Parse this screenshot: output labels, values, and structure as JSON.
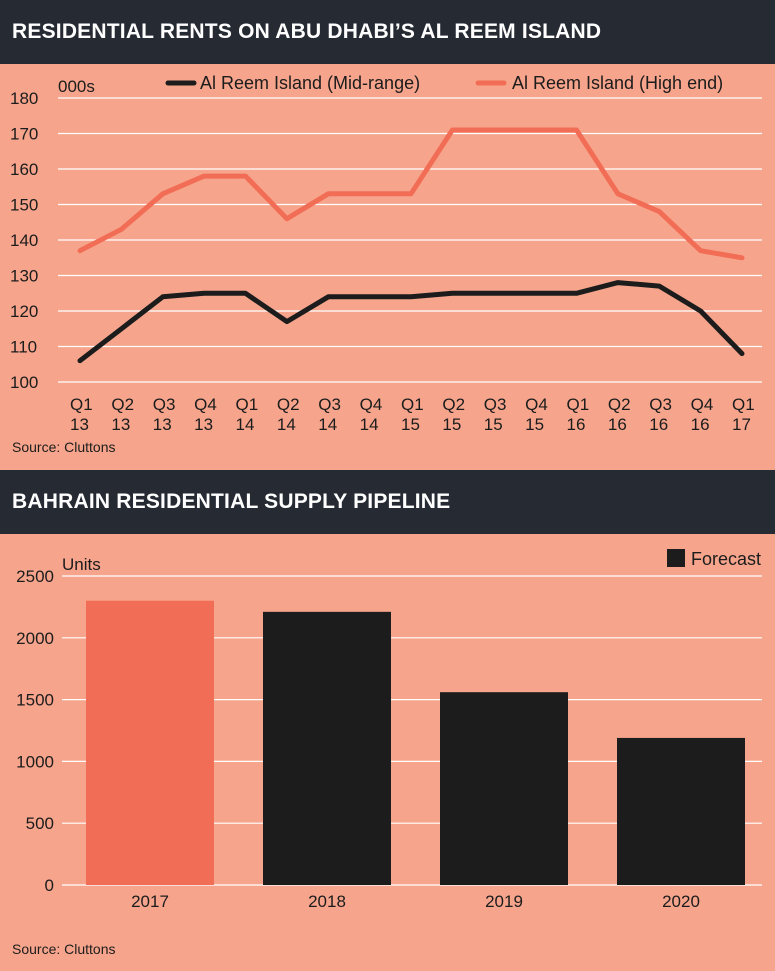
{
  "rents": {
    "header": "RESIDENTIAL RENTS ON ABU DHABI’S AL REEM ISLAND",
    "source": "Source: Cluttons",
    "colors": {
      "mid": "#1c1c1c",
      "high": "#f26d55"
    }
  },
  "supply": {
    "header": "BAHRAIN RESIDENTIAL SUPPLY PIPELINE",
    "source": "Source: Cluttons",
    "colors": {
      "actual": "#f26d55",
      "forecast": "#1c1c1c"
    }
  },
  "chart_data": [
    {
      "type": "line",
      "title": "RESIDENTIAL RENTS ON ABU DHABI’S AL REEM ISLAND",
      "ylabel": "000s",
      "ylim": [
        100,
        180
      ],
      "yticks": [
        100,
        110,
        120,
        130,
        140,
        150,
        160,
        170,
        180
      ],
      "grid": true,
      "legend": "top-right",
      "categories": [
        [
          "Q1",
          "13"
        ],
        [
          "Q2",
          "13"
        ],
        [
          "Q3",
          "13"
        ],
        [
          "Q4",
          "13"
        ],
        [
          "Q1",
          "14"
        ],
        [
          "Q2",
          "14"
        ],
        [
          "Q3",
          "14"
        ],
        [
          "Q4",
          "14"
        ],
        [
          "Q1",
          "15"
        ],
        [
          "Q2",
          "15"
        ],
        [
          "Q3",
          "15"
        ],
        [
          "Q4",
          "15"
        ],
        [
          "Q1",
          "16"
        ],
        [
          "Q2",
          "16"
        ],
        [
          "Q3",
          "16"
        ],
        [
          "Q4",
          "16"
        ],
        [
          "Q1",
          "17"
        ]
      ],
      "series": [
        {
          "name": "Al Reem Island (Mid-range)",
          "color": "#1c1c1c",
          "values": [
            106,
            115,
            124,
            125,
            125,
            117,
            124,
            124,
            124,
            125,
            125,
            125,
            125,
            128,
            127,
            120,
            108
          ]
        },
        {
          "name": "Al Reem Island (High end)",
          "color": "#f26d55",
          "values": [
            137,
            143,
            153,
            158,
            158,
            146,
            153,
            153,
            153,
            171,
            171,
            171,
            171,
            153,
            148,
            137,
            135
          ]
        }
      ],
      "source": "Source: Cluttons"
    },
    {
      "type": "bar",
      "title": "BAHRAIN RESIDENTIAL SUPPLY PIPELINE",
      "ylabel": "Units",
      "ylim": [
        0,
        2500
      ],
      "yticks": [
        0,
        500,
        1000,
        1500,
        2000,
        2500
      ],
      "grid": true,
      "legend": "top-right",
      "legend_label": "Forecast",
      "categories": [
        "2017",
        "2018",
        "2019",
        "2020"
      ],
      "values": [
        2300,
        2210,
        1560,
        1190
      ],
      "forecast": [
        false,
        true,
        true,
        true
      ],
      "source": "Source: Cluttons"
    }
  ]
}
